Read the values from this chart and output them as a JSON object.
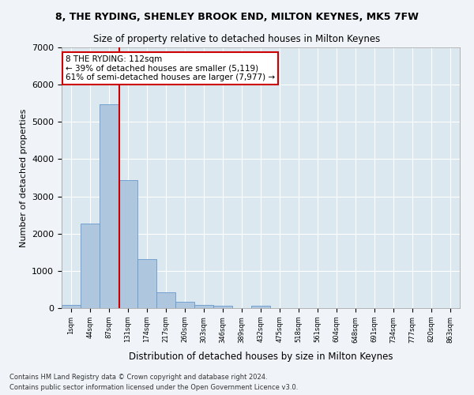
{
  "title": "8, THE RYDING, SHENLEY BROOK END, MILTON KEYNES, MK5 7FW",
  "subtitle": "Size of property relative to detached houses in Milton Keynes",
  "xlabel": "Distribution of detached houses by size in Milton Keynes",
  "ylabel": "Number of detached properties",
  "footer_line1": "Contains HM Land Registry data © Crown copyright and database right 2024.",
  "footer_line2": "Contains public sector information licensed under the Open Government Licence v3.0.",
  "bar_color": "#aec6de",
  "bar_edge_color": "#6699cc",
  "background_color": "#dce8f0",
  "grid_color": "#ffffff",
  "annotation_line1": "8 THE RYDING: 112sqm",
  "annotation_line2": "← 39% of detached houses are smaller (5,119)",
  "annotation_line3": "61% of semi-detached houses are larger (7,977) →",
  "annotation_box_edgecolor": "#cc0000",
  "vline_color": "#cc0000",
  "vline_bin_index": 2.55,
  "categories": [
    "1sqm",
    "44sqm",
    "87sqm",
    "131sqm",
    "174sqm",
    "217sqm",
    "260sqm",
    "303sqm",
    "346sqm",
    "389sqm",
    "432sqm",
    "475sqm",
    "518sqm",
    "561sqm",
    "604sqm",
    "648sqm",
    "691sqm",
    "734sqm",
    "777sqm",
    "820sqm",
    "863sqm"
  ],
  "bar_heights": [
    75,
    2280,
    5480,
    3430,
    1320,
    430,
    160,
    90,
    65,
    0,
    65,
    0,
    0,
    0,
    0,
    0,
    0,
    0,
    0,
    0,
    0
  ],
  "ylim": [
    0,
    7000
  ],
  "yticks": [
    0,
    1000,
    2000,
    3000,
    4000,
    5000,
    6000,
    7000
  ],
  "fig_bg_color": "#f0f4f8"
}
